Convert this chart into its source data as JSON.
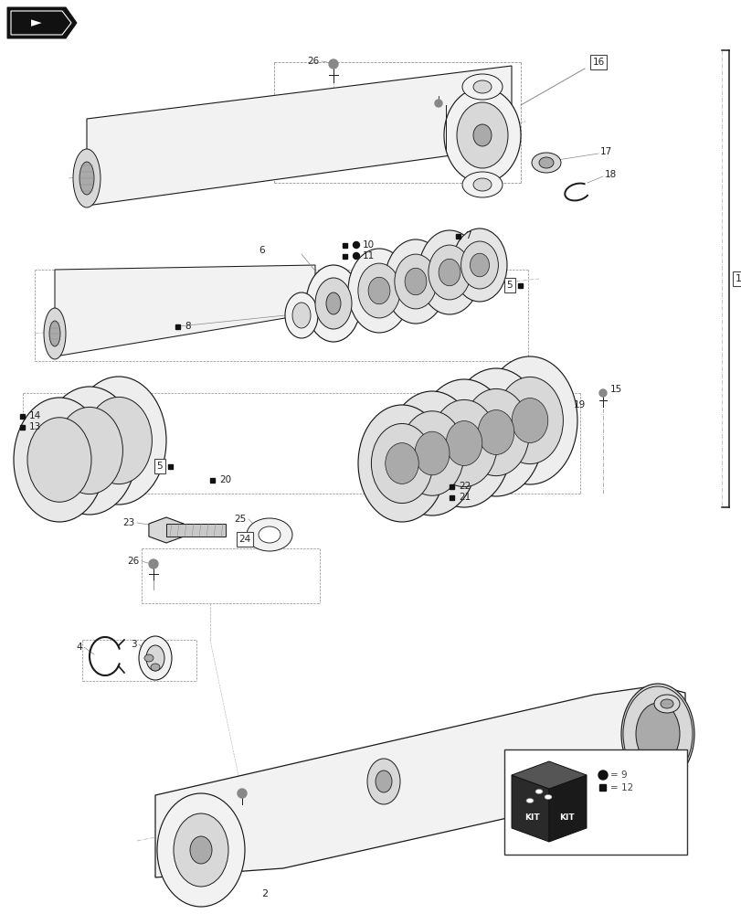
{
  "bg_color": "#ffffff",
  "lc": "#1a1a1a",
  "lc_gray": "#888888",
  "fc_light": "#f2f2f2",
  "fc_mid": "#d8d8d8",
  "fc_dark": "#aaaaaa",
  "fc_black": "#111111",
  "label_fs": 7.5,
  "label_color": "#222222"
}
